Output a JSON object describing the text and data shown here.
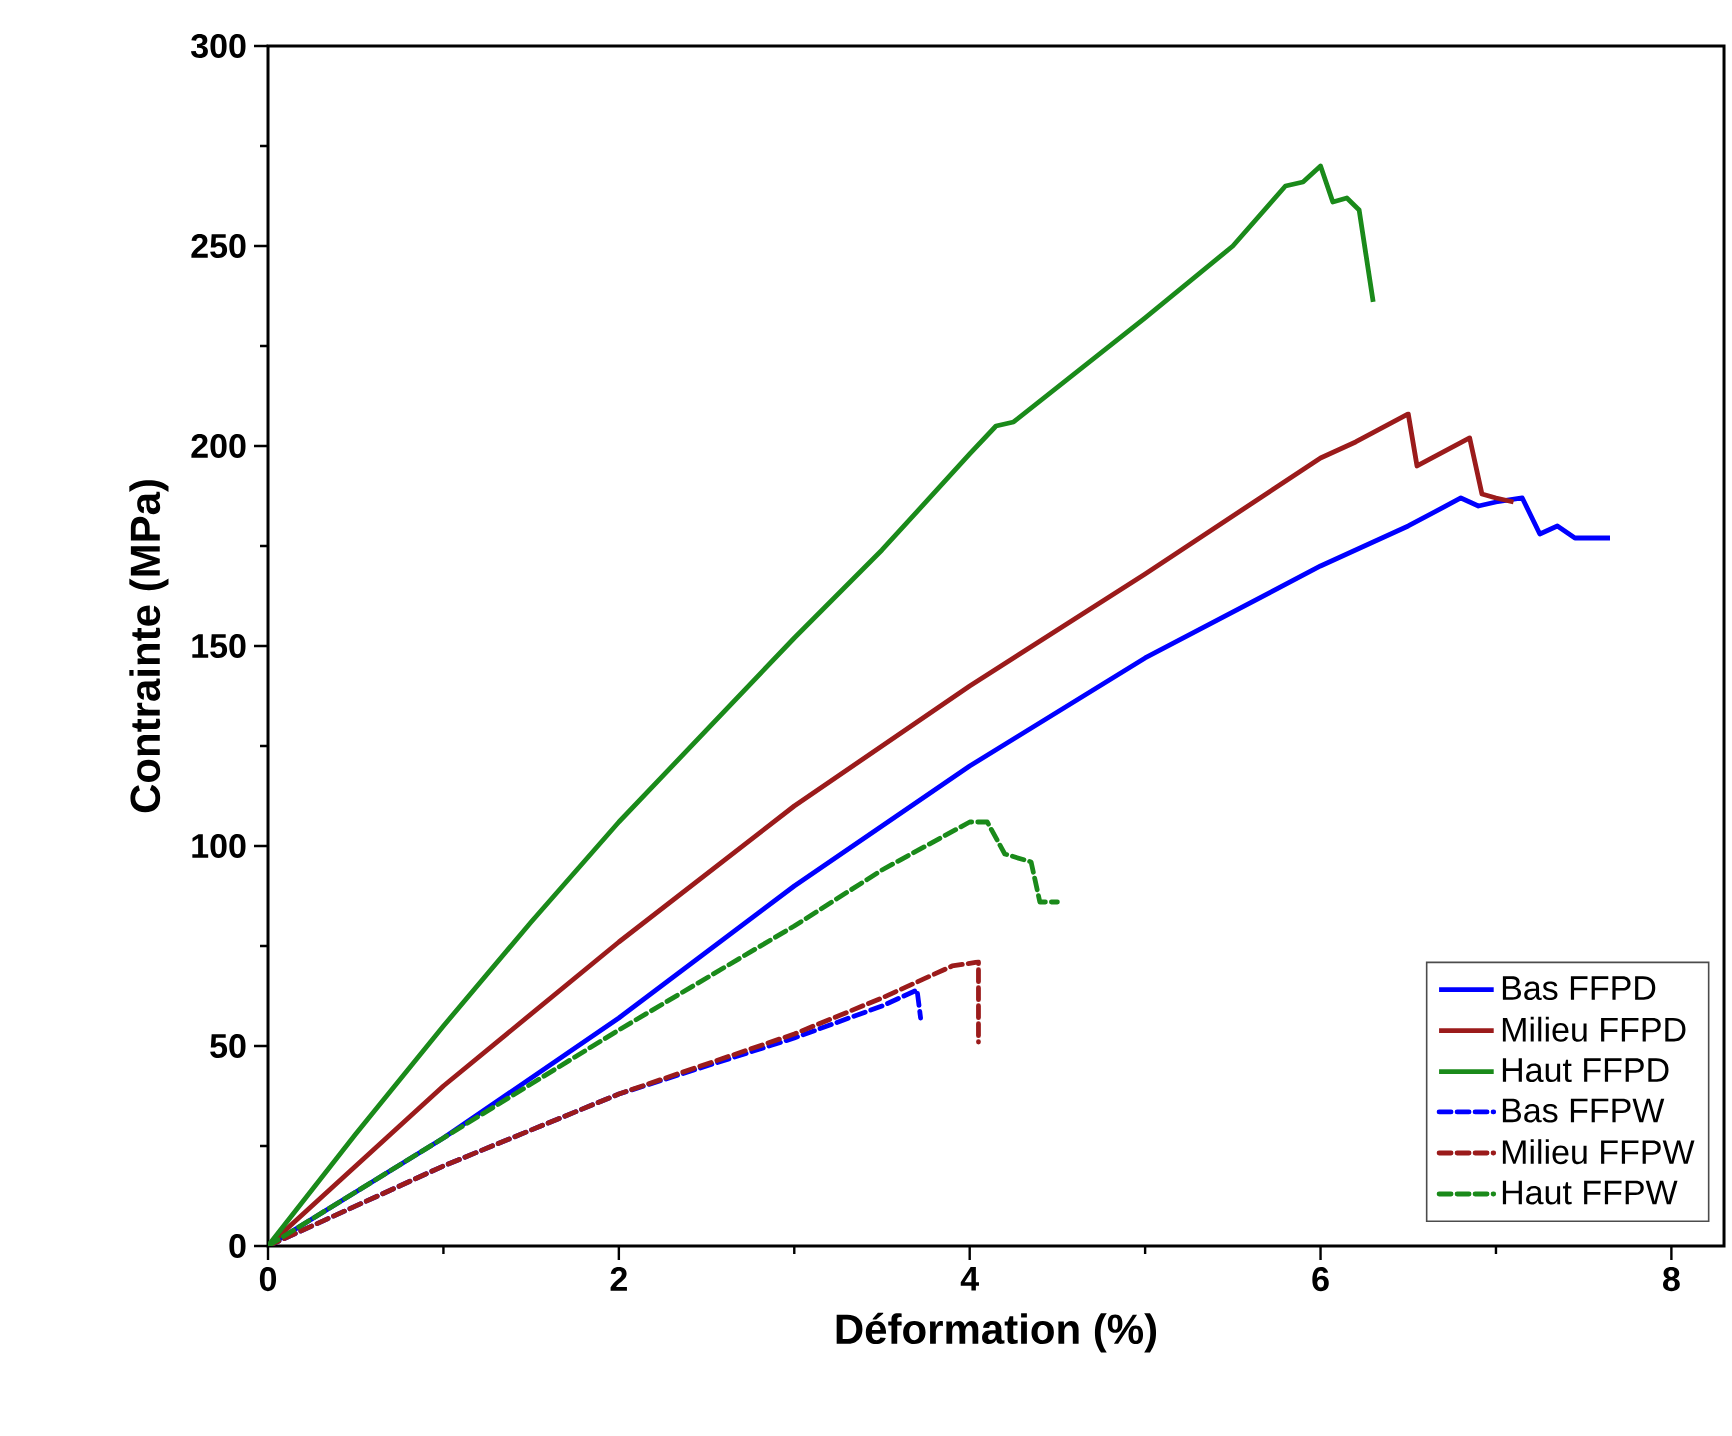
{
  "chart_data": {
    "type": "line",
    "xlabel": "Déformation (%)",
    "ylabel": "Contrainte (MPa)",
    "xlim": [
      0,
      8.3
    ],
    "ylim": [
      0,
      300
    ],
    "xticks": [
      0,
      2,
      4,
      6,
      8
    ],
    "yticks": [
      0,
      50,
      100,
      150,
      200,
      250,
      300
    ],
    "legend": "bottom right",
    "series": [
      {
        "name": "Bas FFPD",
        "color": "#0000ff",
        "line_style": "solid",
        "x": [
          0,
          1,
          2,
          3,
          4,
          5,
          6,
          6.5,
          6.8,
          6.9,
          7.0,
          7.15,
          7.25,
          7.35,
          7.45,
          7.55,
          7.65
        ],
        "values": [
          0,
          27,
          57,
          90,
          120,
          147,
          170,
          180,
          187,
          185,
          186,
          187,
          178,
          180,
          177,
          177,
          177
        ]
      },
      {
        "name": "Milieu FFPD",
        "color": "#9b1b1b",
        "line_style": "solid",
        "x": [
          0,
          1,
          2,
          3,
          4,
          5,
          6,
          6.2,
          6.5,
          6.55,
          6.85,
          6.92,
          7.0,
          7.1
        ],
        "values": [
          0,
          40,
          76,
          110,
          140,
          168,
          197,
          201,
          208,
          195,
          202,
          188,
          187,
          186
        ]
      },
      {
        "name": "Haut FFPD",
        "color": "#1a8a1a",
        "line_style": "solid",
        "x": [
          0,
          0.5,
          1,
          1.5,
          2,
          2.5,
          3,
          3.5,
          4,
          4.15,
          4.25,
          5,
          5.5,
          5.8,
          5.9,
          6.0,
          6.07,
          6.15,
          6.22,
          6.3
        ],
        "values": [
          0,
          28,
          55,
          81,
          106,
          129,
          152,
          174,
          198,
          205,
          206,
          232,
          250,
          265,
          266,
          270,
          261,
          262,
          259,
          236
        ]
      },
      {
        "name": "Bas FFPW",
        "color": "#0000ff",
        "line_style": "dashed",
        "x": [
          0,
          1,
          2,
          3,
          3.5,
          3.7,
          3.72
        ],
        "values": [
          0,
          20,
          38,
          52,
          60,
          64,
          57
        ]
      },
      {
        "name": "Milieu FFPW",
        "color": "#9b1b1b",
        "line_style": "dashed",
        "x": [
          0,
          1,
          2,
          3,
          3.5,
          3.9,
          4.05,
          4.05
        ],
        "values": [
          0,
          20,
          38,
          53,
          62,
          70,
          71,
          51
        ]
      },
      {
        "name": "Haut FFPW",
        "color": "#1a8a1a",
        "line_style": "dashed",
        "x": [
          0,
          1,
          2,
          3,
          3.5,
          4,
          4.1,
          4.2,
          4.35,
          4.4,
          4.5
        ],
        "values": [
          0,
          27,
          54,
          80,
          94,
          106,
          106,
          98,
          96,
          86,
          86
        ]
      }
    ]
  }
}
